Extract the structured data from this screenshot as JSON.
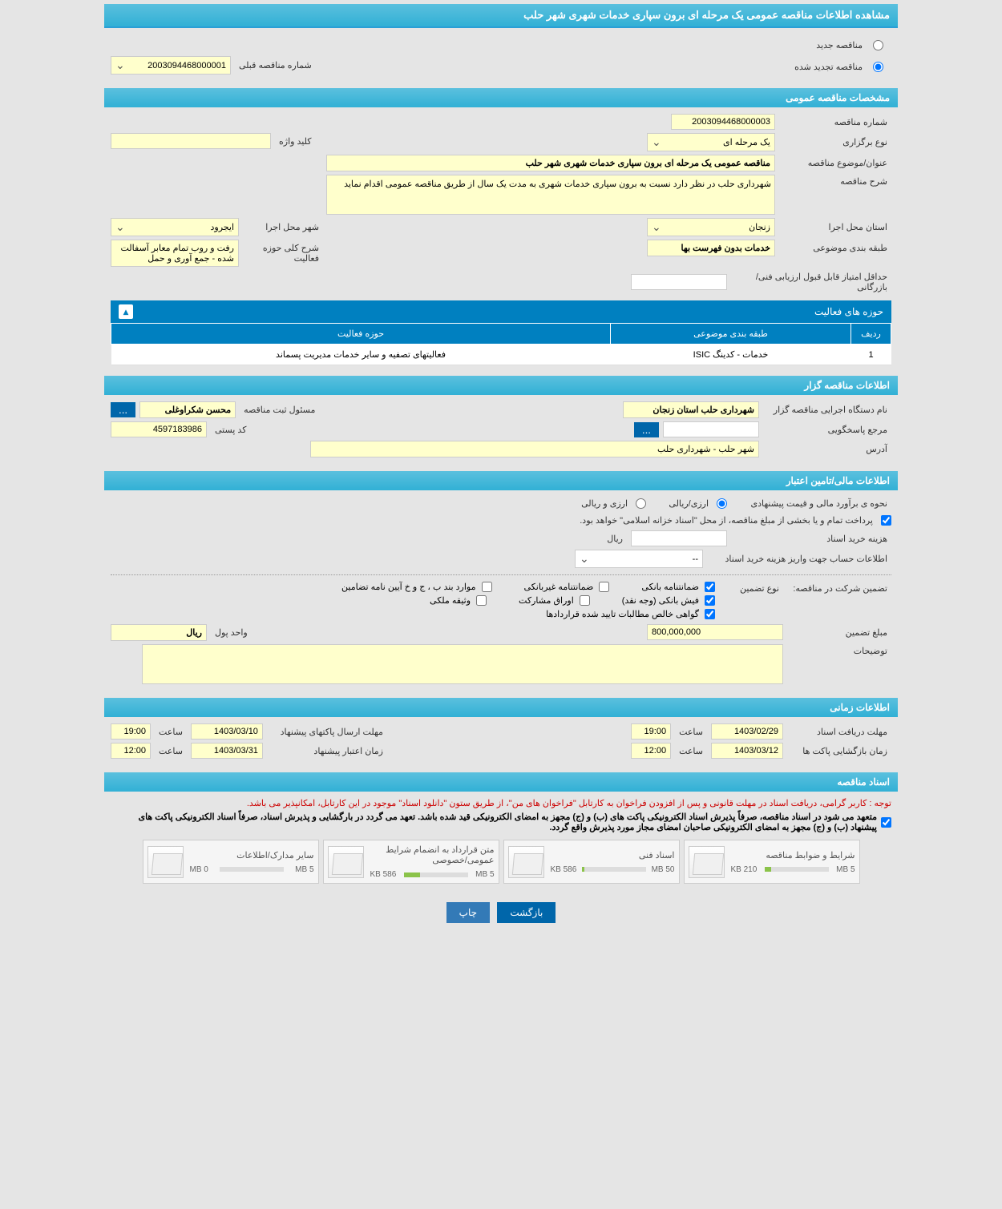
{
  "main_title": "مشاهده اطلاعات مناقصه عمومی یک مرحله ای برون سپاری خدمات شهری شهر حلب",
  "top_radio": {
    "new": "مناقصه جدید",
    "renewed": "مناقصه تجدید شده",
    "prev_num_label": "شماره مناقصه قبلی",
    "prev_num_value": "2003094468000001"
  },
  "sec_general": {
    "title": "مشخصات مناقصه عمومی",
    "num_label": "شماره مناقصه",
    "num_value": "2003094468000003",
    "type_label": "نوع برگزاری",
    "type_value": "یک مرحله ای",
    "keyword_label": "کلید واژه",
    "keyword_value": "",
    "subject_label": "عنوان/موضوع مناقصه",
    "subject_value": "مناقصه عمومی یک مرحله ای برون سپاری خدمات شهری شهر حلب",
    "desc_label": "شرح مناقصه",
    "desc_value": "شهرداری حلب در نظر دارد نسبت به برون سپاری خدمات شهری به مدت یک سال از طریق مناقصه عمومی اقدام نماید",
    "province_label": "استان محل اجرا",
    "province_value": "زنجان",
    "city_label": "شهر محل اجرا",
    "city_value": "ایجرود",
    "category_label": "طبقه بندی موضوعی",
    "category_value": "خدمات بدون فهرست بها",
    "activity_desc_label": "شرح کلی حوزه فعالیت",
    "activity_desc_value": "رفت و روب تمام معابر آسفالت شده - جمع آوری و حمل",
    "min_score_label": "حداقل امتیاز قابل قبول ارزیابی فنی/بازرگانی",
    "min_score_value": ""
  },
  "activity_table": {
    "title": "حوزه های فعالیت",
    "headers": {
      "row": "ردیف",
      "category": "طبقه بندی موضوعی",
      "field": "حوزه فعالیت"
    },
    "rows": [
      {
        "row": "1",
        "category": "خدمات - کدینگ ISIC",
        "field": "فعالیتهای تصفیه و سایر خدمات مدیریت پسماند"
      }
    ]
  },
  "sec_org": {
    "title": "اطلاعات مناقصه گزار",
    "org_label": "نام دستگاه اجرایی مناقصه گزار",
    "org_value": "شهرداری حلب استان زنجان",
    "responsible_label": "مسئول ثبت مناقصه",
    "responsible_value": "محسن شکراوغلی",
    "contact_label": "مرجع پاسخگویی",
    "contact_value": "",
    "postal_label": "کد پستی",
    "postal_value": "4597183986",
    "address_label": "آدرس",
    "address_value": "شهر حلب - شهرداری حلب"
  },
  "sec_finance": {
    "title": "اطلاعات مالی/تامین اعتبار",
    "estimate_label": "نحوه ی برآورد مالی و قیمت پیشنهادی",
    "opt_arzi_riali": "ارزی/ریالی",
    "opt_arzi_o_riali": "ارزی و ریالی",
    "payment_note": "پرداخت تمام و یا بخشی از مبلغ مناقصه، از محل \"اسناد خزانه اسلامی\" خواهد بود.",
    "doc_cost_label": "هزینه خرید اسناد",
    "doc_cost_value": "",
    "rial": "ریال",
    "account_label": "اطلاعات حساب جهت واریز هزینه خرید اسناد",
    "account_value": "--",
    "guarantee_label": "تضمین شرکت در مناقصه:",
    "guarantee_type_label": "نوع تضمین",
    "g1": "ضمانتنامه بانکی",
    "g2": "ضمانتنامه غیربانکی",
    "g3": "موارد بند ب ، ج و خ آیین نامه تضامین",
    "g4": "فیش بانکی (وجه نقد)",
    "g5": "اوراق مشارکت",
    "g6": "وثیقه ملکی",
    "g7": "گواهی خالص مطالبات تایید شده قراردادها",
    "amount_label": "مبلغ تضمین",
    "amount_value": "800,000,000",
    "unit_label": "واحد پول",
    "unit_value": "ریال",
    "notes_label": "توضیحات",
    "notes_value": ""
  },
  "sec_time": {
    "title": "اطلاعات زمانی",
    "receive_label": "مهلت دریافت اسناد",
    "receive_date": "1403/02/29",
    "receive_time_label": "ساعت",
    "receive_time": "19:00",
    "send_label": "مهلت ارسال پاکتهای پیشنهاد",
    "send_date": "1403/03/10",
    "send_time": "19:00",
    "open_label": "زمان بازگشایی پاکت ها",
    "open_date": "1403/03/12",
    "open_time": "12:00",
    "validity_label": "زمان اعتبار پیشنهاد",
    "validity_date": "1403/03/31",
    "validity_time": "12:00"
  },
  "sec_docs": {
    "title": "اسناد مناقصه",
    "note1": "توجه : کاربر گرامی، دریافت اسناد در مهلت قانونی و پس از افزودن فراخوان به کارتابل \"فراخوان های من\"، از طریق ستون \"دانلود اسناد\" موجود در این کارتابل، امکانپذیر می باشد.",
    "note2": "متعهد می شود در اسناد مناقصه، صرفاً پذیرش اسناد الکترونیکی پاکت های (ب) و (ج) مجهز به امضای الکترونیکی قید شده باشد. تعهد می گردد در بارگشایی و پذیرش اسناد، صرفاً اسناد الکترونیکی پاکت های پیشنهاد (ب) و (ج) مجهز به امضای الکترونیکی صاحبان امضای مجاز مورد پذیرش واقع گردد.",
    "files": [
      {
        "title": "شرایط و ضوابط مناقصه",
        "used": "210 KB",
        "total": "5 MB",
        "fill": 10
      },
      {
        "title": "اسناد فنی",
        "used": "586 KB",
        "total": "50 MB",
        "fill": 4
      },
      {
        "title": "متن قرارداد به انضمام شرایط عمومی/خصوصی",
        "used": "586 KB",
        "total": "5 MB",
        "fill": 25
      },
      {
        "title": "سایر مدارک/اطلاعات",
        "used": "0 MB",
        "total": "5 MB",
        "fill": 0
      }
    ]
  },
  "buttons": {
    "back": "بازگشت",
    "print": "چاپ",
    "ellipsis": "..."
  },
  "colors": {
    "header": "#31b0d5",
    "panel": "#0080c0",
    "field_bg": "#ffffcc",
    "page_bg": "#e5e5e5",
    "red": "#c00"
  }
}
